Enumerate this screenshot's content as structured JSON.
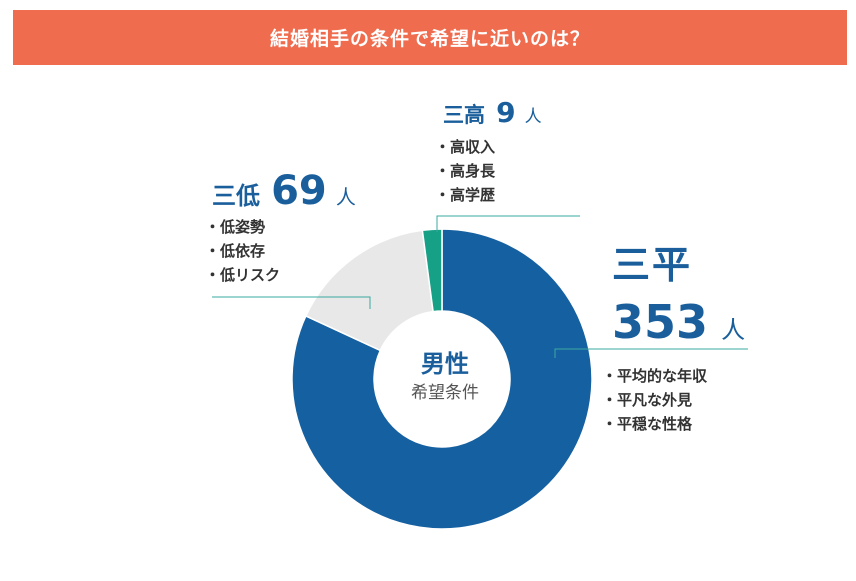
{
  "title": "結婚相手の条件で希望に近いのは？",
  "center": {
    "title": "男性",
    "subtitle": "希望条件"
  },
  "chart_data": {
    "type": "pie",
    "donut": true,
    "title": "結婚相手の条件で希望に近いのは？",
    "unit": "人",
    "slices": [
      {
        "name": "三平",
        "value": 353,
        "color": "#1560a0",
        "items": [
          "平均的な年収",
          "平凡な外見",
          "平穏な性格"
        ]
      },
      {
        "name": "三低",
        "value": 69,
        "color": "#e8e8e8",
        "items": [
          "低姿勢",
          "低依存",
          "低リスク"
        ]
      },
      {
        "name": "三高",
        "value": 9,
        "color": "#16a085",
        "items": [
          "高収入",
          "高身長",
          "高学歴"
        ]
      }
    ]
  }
}
